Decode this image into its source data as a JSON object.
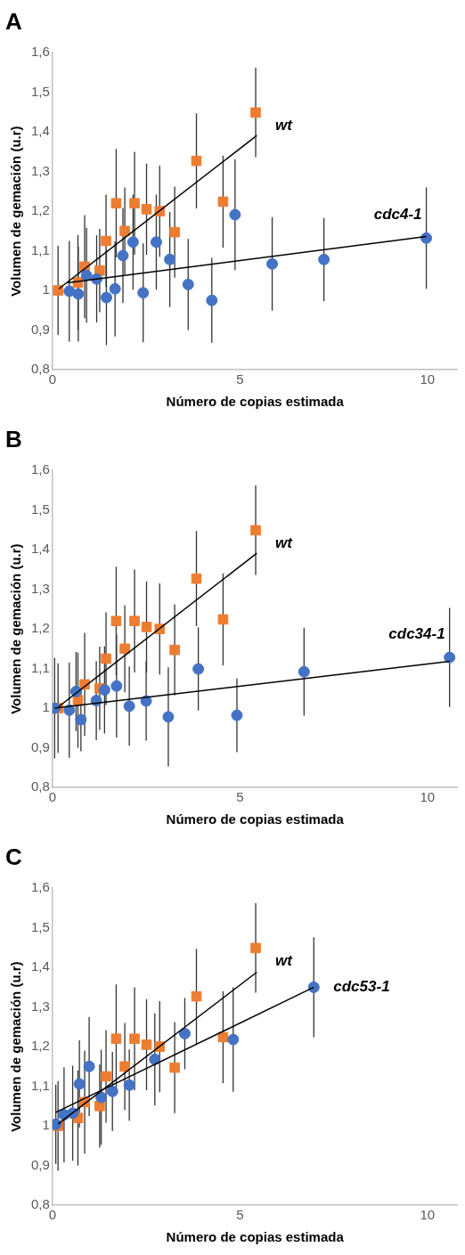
{
  "chart_data": [
    {
      "type": "scatter",
      "title": "A",
      "xlabel": "Número de copias estimada",
      "ylabel": "Volumen de gemación (u.r)",
      "xlim": [
        0,
        10.8
      ],
      "xticks": [
        0,
        5,
        10
      ],
      "ylim": [
        0.8,
        1.6
      ],
      "yticks": [
        {
          "value": 0.8,
          "label": "0,8"
        },
        {
          "value": 0.9,
          "label": "0,9"
        },
        {
          "value": 1,
          "label": "1"
        },
        {
          "value": 1.1,
          "label": "1,1"
        },
        {
          "value": 1.2,
          "label": "1,2"
        },
        {
          "value": 1.3,
          "label": "1,3"
        },
        {
          "value": 1.4,
          "label": "1,4"
        },
        {
          "value": 1.5,
          "label": "1,5"
        },
        {
          "value": 1.6,
          "label": "1,6"
        }
      ],
      "grid": false,
      "legend": false,
      "series": [
        {
          "name": "wt",
          "type": "scatter",
          "marker": "square",
          "color": "#ed7d31",
          "x": [
            0.15,
            0.68,
            0.86,
            1.26,
            1.43,
            1.7,
            1.93,
            2.19,
            2.51,
            2.86,
            3.26,
            3.84,
            4.55,
            5.42
          ],
          "values": [
            1.0,
            1.02,
            1.06,
            1.05,
            1.125,
            1.22,
            1.15,
            1.22,
            1.205,
            1.2,
            1.147,
            1.327,
            1.224,
            1.449
          ],
          "errors": [
            0.113,
            0.12,
            0.13,
            0.105,
            0.117,
            0.137,
            0.11,
            0.13,
            0.115,
            0.115,
            0.115,
            0.12,
            0.116,
            0.113
          ]
        },
        {
          "name": "cdc4-1",
          "type": "scatter",
          "marker": "circle",
          "color": "#4472c4",
          "x": [
            0.45,
            0.69,
            0.91,
            1.18,
            1.44,
            1.67,
            1.88,
            2.15,
            2.42,
            2.77,
            3.13,
            3.62,
            4.25,
            4.87,
            5.86,
            7.24,
            9.97
          ],
          "values": [
            0.998,
            0.991,
            1.038,
            1.029,
            0.982,
            1.004,
            1.088,
            1.122,
            0.994,
            1.122,
            1.078,
            1.015,
            0.975,
            1.191,
            1.067,
            1.078,
            1.132
          ],
          "errors": [
            0.127,
            0.12,
            0.12,
            0.11,
            0.12,
            0.12,
            0.12,
            0.12,
            0.125,
            0.12,
            0.12,
            0.115,
            0.107,
            0.14,
            0.118,
            0.105,
            0.128
          ]
        },
        {
          "type": "line",
          "marker": "none",
          "color": "#000000",
          "x": [
            0.17,
            5.45
          ],
          "values": [
            1.004,
            1.391
          ]
        },
        {
          "type": "line",
          "marker": "none",
          "color": "#000000",
          "x": [
            0.4,
            9.97
          ],
          "values": [
            1.019,
            1.136
          ]
        }
      ]
    },
    {
      "type": "scatter",
      "title": "B",
      "xlabel": "Número de copias estimada",
      "ylabel": "Volumen de gemación (u.r)",
      "xlim": [
        0,
        10.8
      ],
      "xticks": [
        0,
        5,
        10
      ],
      "ylim": [
        0.8,
        1.6
      ],
      "yticks": [
        {
          "value": 0.8,
          "label": "0,8"
        },
        {
          "value": 0.9,
          "label": "0,9"
        },
        {
          "value": 1,
          "label": "1"
        },
        {
          "value": 1.1,
          "label": "1,1"
        },
        {
          "value": 1.2,
          "label": "1,2"
        },
        {
          "value": 1.3,
          "label": "1,3"
        },
        {
          "value": 1.4,
          "label": "1,4"
        },
        {
          "value": 1.5,
          "label": "1,5"
        },
        {
          "value": 1.6,
          "label": "1,6"
        }
      ],
      "grid": false,
      "legend": false,
      "series": [
        {
          "name": "wt",
          "type": "scatter",
          "marker": "square",
          "color": "#ed7d31",
          "x": [
            0.15,
            0.68,
            0.86,
            1.26,
            1.43,
            1.7,
            1.93,
            2.19,
            2.51,
            2.86,
            3.26,
            3.84,
            4.55,
            5.42
          ],
          "values": [
            1.0,
            1.02,
            1.06,
            1.05,
            1.125,
            1.22,
            1.15,
            1.22,
            1.205,
            1.2,
            1.147,
            1.327,
            1.224,
            1.449
          ],
          "errors": [
            0.113,
            0.12,
            0.13,
            0.105,
            0.117,
            0.137,
            0.11,
            0.13,
            0.115,
            0.115,
            0.115,
            0.12,
            0.116,
            0.113
          ]
        },
        {
          "name": "cdc34-1",
          "type": "scatter",
          "marker": "circle",
          "color": "#4472c4",
          "x": [
            0.06,
            0.45,
            0.63,
            0.76,
            1.17,
            1.39,
            1.71,
            2.05,
            2.5,
            3.09,
            3.89,
            4.92,
            6.71,
            10.59
          ],
          "values": [
            1.0,
            0.995,
            1.042,
            0.971,
            1.019,
            1.046,
            1.056,
            1.005,
            1.018,
            0.978,
            1.099,
            0.982,
            1.092,
            1.128
          ],
          "errors": [
            0.127,
            0.12,
            0.1,
            0.08,
            0.1,
            0.11,
            0.13,
            0.1,
            0.1,
            0.125,
            0.105,
            0.093,
            0.111,
            0.125
          ]
        },
        {
          "type": "line",
          "marker": "none",
          "color": "#000000",
          "x": [
            0.17,
            5.45
          ],
          "values": [
            1.004,
            1.391
          ]
        },
        {
          "type": "line",
          "marker": "none",
          "color": "#000000",
          "x": [
            0.06,
            10.59
          ],
          "values": [
            1.0,
            1.118
          ]
        }
      ]
    },
    {
      "type": "scatter",
      "title": "C",
      "xlabel": "Número de copias estimada",
      "ylabel": "Volumen de gemación (u.r)",
      "xlim": [
        0,
        10.8
      ],
      "xticks": [
        0,
        5,
        10
      ],
      "ylim": [
        0.8,
        1.6
      ],
      "yticks": [
        {
          "value": 0.8,
          "label": "0,8"
        },
        {
          "value": 0.9,
          "label": "0,9"
        },
        {
          "value": 1,
          "label": "1"
        },
        {
          "value": 1.1,
          "label": "1,1"
        },
        {
          "value": 1.2,
          "label": "1,2"
        },
        {
          "value": 1.3,
          "label": "1,3"
        },
        {
          "value": 1.4,
          "label": "1,4"
        },
        {
          "value": 1.5,
          "label": "1,5"
        },
        {
          "value": 1.6,
          "label": "1,6"
        }
      ],
      "grid": false,
      "legend": false,
      "series": [
        {
          "name": "wt",
          "type": "scatter",
          "marker": "square",
          "color": "#ed7d31",
          "x": [
            0.15,
            0.68,
            0.86,
            1.26,
            1.43,
            1.7,
            1.93,
            2.19,
            2.51,
            2.86,
            3.26,
            3.84,
            4.55,
            5.42
          ],
          "values": [
            1.0,
            1.02,
            1.06,
            1.05,
            1.125,
            1.22,
            1.15,
            1.22,
            1.205,
            1.2,
            1.147,
            1.327,
            1.224,
            1.449
          ],
          "errors": [
            0.113,
            0.12,
            0.13,
            0.105,
            0.117,
            0.137,
            0.11,
            0.13,
            0.115,
            0.115,
            0.115,
            0.12,
            0.116,
            0.113
          ]
        },
        {
          "name": "cdc53-1",
          "type": "scatter",
          "marker": "circle",
          "color": "#4472c4",
          "x": [
            0.09,
            0.31,
            0.54,
            0.72,
            0.98,
            1.3,
            1.6,
            2.05,
            2.73,
            3.53,
            4.82,
            6.97
          ],
          "values": [
            1.004,
            1.028,
            1.032,
            1.106,
            1.15,
            1.072,
            1.087,
            1.103,
            1.168,
            1.233,
            1.218,
            1.35
          ],
          "errors": [
            0.1,
            0.12,
            0.12,
            0.11,
            0.125,
            0.12,
            0.1,
            0.09,
            0.116,
            0.09,
            0.132,
            0.126
          ]
        },
        {
          "type": "line",
          "marker": "none",
          "color": "#000000",
          "x": [
            0.15,
            5.45
          ],
          "values": [
            1.005,
            1.388
          ]
        },
        {
          "type": "line",
          "marker": "none",
          "color": "#000000",
          "x": [
            0.09,
            6.97
          ],
          "values": [
            1.034,
            1.35
          ]
        }
      ]
    }
  ]
}
